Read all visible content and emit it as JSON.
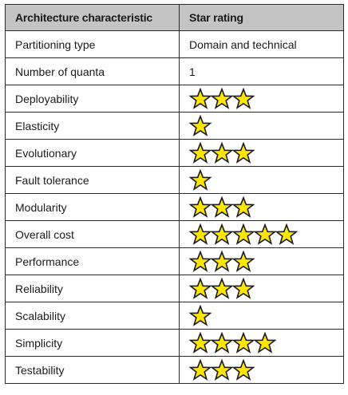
{
  "table": {
    "headers": [
      "Architecture characteristic",
      "Star rating"
    ],
    "star_color": "#FFE600",
    "star_outline_color": "#1a1a1a",
    "rows": [
      {
        "characteristic": "Partitioning type",
        "value": "Domain and technical",
        "stars": null
      },
      {
        "characteristic": "Number of quanta",
        "value": "1",
        "stars": null
      },
      {
        "characteristic": "Deployability",
        "value": null,
        "stars": 3
      },
      {
        "characteristic": "Elasticity",
        "value": null,
        "stars": 1
      },
      {
        "characteristic": "Evolutionary",
        "value": null,
        "stars": 3
      },
      {
        "characteristic": "Fault tolerance",
        "value": null,
        "stars": 1
      },
      {
        "characteristic": "Modularity",
        "value": null,
        "stars": 3
      },
      {
        "characteristic": "Overall cost",
        "value": null,
        "stars": 5
      },
      {
        "characteristic": "Performance",
        "value": null,
        "stars": 3
      },
      {
        "characteristic": "Reliability",
        "value": null,
        "stars": 3
      },
      {
        "characteristic": "Scalability",
        "value": null,
        "stars": 1
      },
      {
        "characteristic": "Simplicity",
        "value": null,
        "stars": 4
      },
      {
        "characteristic": "Testability",
        "value": null,
        "stars": 3
      }
    ]
  }
}
